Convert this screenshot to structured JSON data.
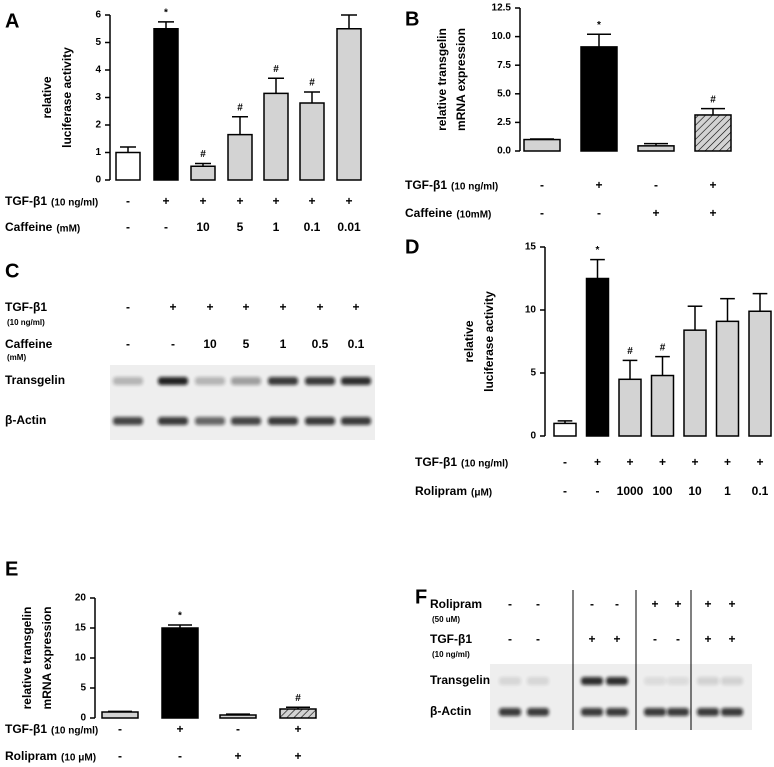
{
  "chart_data": [
    {
      "panel": "A",
      "type": "bar",
      "y_label": [
        "relative",
        "luciferase activity"
      ],
      "ylim": [
        0,
        6
      ],
      "yticks": [
        0,
        1,
        2,
        3,
        4,
        5,
        6
      ],
      "values": [
        1.0,
        5.5,
        0.5,
        1.65,
        3.15,
        2.8,
        5.5
      ],
      "errors": [
        0.2,
        0.25,
        0.1,
        0.65,
        0.55,
        0.4,
        0.5
      ],
      "fills": [
        "#ffffff",
        "#000000",
        "#d3d3d3",
        "#d3d3d3",
        "#d3d3d3",
        "#d3d3d3",
        "#d3d3d3"
      ],
      "annotations": [
        null,
        "*",
        "#",
        "#",
        "#",
        "#",
        null
      ],
      "conditions": [
        {
          "label": "TGF-β1",
          "unit": "(10 ng/ml)",
          "values": [
            "-",
            "+",
            "+",
            "+",
            "+",
            "+",
            "+"
          ]
        },
        {
          "label": "Caffeine",
          "unit": "(mM)",
          "values": [
            "-",
            "-",
            "10",
            "5",
            "1",
            "0.1",
            "0.01"
          ]
        }
      ]
    },
    {
      "panel": "B",
      "type": "bar",
      "y_label": [
        "relative transgelin",
        "mRNA expression"
      ],
      "ylim": [
        0,
        12.5
      ],
      "yticks": [
        {
          "value": 0,
          "label": "0.0"
        },
        {
          "value": 2.5,
          "label": "2.5"
        },
        {
          "value": 5,
          "label": "5.0"
        },
        {
          "value": 7.5,
          "label": "7.5"
        },
        {
          "value": 10,
          "label": "10.0"
        },
        {
          "value": 12.5,
          "label": "12.5"
        }
      ],
      "values": [
        1.0,
        9.1,
        0.45,
        3.15
      ],
      "errors": [
        0.05,
        1.1,
        0.2,
        0.55
      ],
      "fills": [
        "#d3d3d3",
        "#000000",
        "#d3d3d3",
        "hatch"
      ],
      "annotations": [
        null,
        "*",
        null,
        "#"
      ],
      "conditions": [
        {
          "label": "TGF-β1",
          "unit": "(10 ng/ml)",
          "values": [
            "-",
            "+",
            "-",
            "+"
          ]
        },
        {
          "label": "Caffeine",
          "unit": "(10mM)",
          "values": [
            "-",
            "-",
            "+",
            "+"
          ]
        }
      ]
    },
    {
      "panel": "D",
      "type": "bar",
      "y_label": [
        "relative",
        "luciferase activity"
      ],
      "ylim": [
        0,
        15
      ],
      "yticks": [
        0,
        5,
        10,
        15
      ],
      "values": [
        1.0,
        12.5,
        4.5,
        4.8,
        8.4,
        9.1,
        9.9
      ],
      "errors": [
        0.2,
        1.5,
        1.5,
        1.5,
        1.9,
        1.8,
        1.4
      ],
      "fills": [
        "#ffffff",
        "#000000",
        "#d3d3d3",
        "#d3d3d3",
        "#d3d3d3",
        "#d3d3d3",
        "#d3d3d3"
      ],
      "annotations": [
        null,
        "*",
        "#",
        "#",
        null,
        null,
        null
      ],
      "conditions": [
        {
          "label": "TGF-β1",
          "unit": "(10 ng/ml)",
          "values": [
            "-",
            "+",
            "+",
            "+",
            "+",
            "+",
            "+"
          ]
        },
        {
          "label": "Rolipram",
          "unit": "(μM)",
          "values": [
            "-",
            "-",
            "1000",
            "100",
            "10",
            "1",
            "0.1"
          ]
        }
      ]
    },
    {
      "panel": "E",
      "type": "bar",
      "y_label": [
        "relative transgelin",
        "mRNA expression"
      ],
      "ylim": [
        0,
        20
      ],
      "yticks": [
        0,
        5,
        10,
        15,
        20
      ],
      "values": [
        1.0,
        15.0,
        0.5,
        1.5
      ],
      "errors": [
        0.1,
        0.5,
        0.15,
        0.3
      ],
      "fills": [
        "#d3d3d3",
        "#000000",
        "#d3d3d3",
        "hatch"
      ],
      "annotations": [
        null,
        "*",
        null,
        "#"
      ],
      "conditions": [
        {
          "label": "TGF-β1",
          "unit": "(10 ng/ml)",
          "values": [
            "-",
            "+",
            "-",
            "+"
          ]
        },
        {
          "label": "Rolipram",
          "unit": "(10 μM)",
          "values": [
            "-",
            "-",
            "+",
            "+"
          ]
        }
      ]
    }
  ],
  "blots": [
    {
      "panel": "C",
      "conditions": [
        {
          "label": "TGF-β1",
          "unit": "(10 ng/ml)",
          "values": [
            "-",
            "+",
            "+",
            "+",
            "+",
            "+",
            "+"
          ]
        },
        {
          "label": "Caffeine",
          "unit": "(mM)",
          "values": [
            "-",
            "-",
            "10",
            "5",
            "1",
            "0.5",
            "0.1"
          ]
        }
      ],
      "bands": [
        "Transgelin",
        "β-Actin"
      ]
    },
    {
      "panel": "F",
      "conditions": [
        {
          "label": "Rolipram",
          "unit": "(50 uM)",
          "values": [
            "-",
            "-",
            "-",
            "-",
            "+",
            "+",
            "+",
            "+"
          ]
        },
        {
          "label": "TGF-β1",
          "unit": "(10 ng/ml)",
          "values": [
            "-",
            "-",
            "+",
            "+",
            "-",
            "-",
            "+",
            "+"
          ]
        }
      ],
      "bands": [
        "Transgelin",
        "β-Actin"
      ]
    }
  ]
}
